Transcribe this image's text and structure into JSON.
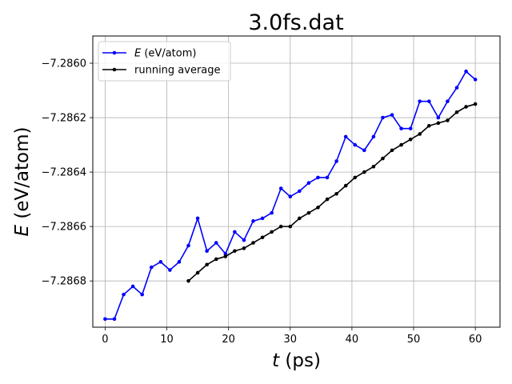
{
  "chart_data": {
    "type": "line",
    "title": "3.0fs.dat",
    "xlabel": "t (ps)",
    "ylabel": "E (eV/atom)",
    "xlim": [
      -2,
      64
    ],
    "ylim": [
      -7.28697,
      -7.2859
    ],
    "xticks": [
      "0",
      "10",
      "20",
      "30",
      "40",
      "50",
      "60"
    ],
    "xtick_values": [
      0,
      10,
      20,
      30,
      40,
      50,
      60
    ],
    "yticks": [
      "−7.2868",
      "−7.2866",
      "−7.2864",
      "−7.2862",
      "−7.2860"
    ],
    "ytick_values": [
      -7.2868,
      -7.2866,
      -7.2864,
      -7.2862,
      -7.286
    ],
    "grid": true,
    "legend_position": "upper-left",
    "series": [
      {
        "name": "E (eV/atom)",
        "color": "#0000ff",
        "marker": "dot",
        "x": [
          0,
          1.5,
          3,
          4.5,
          6,
          7.5,
          9,
          10.5,
          12,
          13.5,
          15,
          16.5,
          18,
          19.5,
          21,
          22.5,
          24,
          25.5,
          27,
          28.5,
          30,
          31.5,
          33,
          34.5,
          36,
          37.5,
          39,
          40.5,
          42,
          43.5,
          45,
          46.5,
          48,
          49.5,
          51,
          52.5,
          54,
          55.5,
          57,
          58.5,
          60
        ],
        "y": [
          -7.28694,
          -7.28694,
          -7.28685,
          -7.28682,
          -7.28685,
          -7.28675,
          -7.28673,
          -7.28676,
          -7.28673,
          -7.28667,
          -7.28657,
          -7.28669,
          -7.28666,
          -7.2867,
          -7.28662,
          -7.28665,
          -7.28658,
          -7.28657,
          -7.28655,
          -7.28646,
          -7.28649,
          -7.28647,
          -7.28644,
          -7.28642,
          -7.28642,
          -7.28636,
          -7.28627,
          -7.2863,
          -7.28632,
          -7.28627,
          -7.2862,
          -7.28619,
          -7.28624,
          -7.28624,
          -7.28614,
          -7.28614,
          -7.2862,
          -7.28614,
          -7.28609,
          -7.28603,
          -7.28606
        ]
      },
      {
        "name": "running average",
        "color": "#000000",
        "marker": "dot",
        "x": [
          13.5,
          15,
          16.5,
          18,
          19.5,
          21,
          22.5,
          24,
          25.5,
          27,
          28.5,
          30,
          31.5,
          33,
          34.5,
          36,
          37.5,
          39,
          40.5,
          42,
          43.5,
          45,
          46.5,
          48,
          49.5,
          51,
          52.5,
          54,
          55.5,
          57,
          58.5,
          60
        ],
        "y": [
          -7.2868,
          -7.28677,
          -7.28674,
          -7.28672,
          -7.28671,
          -7.28669,
          -7.28668,
          -7.28666,
          -7.28664,
          -7.28662,
          -7.2866,
          -7.2866,
          -7.28657,
          -7.28655,
          -7.28653,
          -7.2865,
          -7.28648,
          -7.28645,
          -7.28642,
          -7.2864,
          -7.28638,
          -7.28635,
          -7.28632,
          -7.2863,
          -7.28628,
          -7.28626,
          -7.28623,
          -7.28622,
          -7.28621,
          -7.28618,
          -7.28616,
          -7.28615
        ]
      }
    ]
  }
}
